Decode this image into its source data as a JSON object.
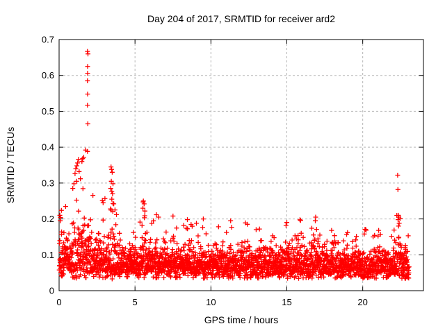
{
  "page": {
    "background": "#ffffff"
  },
  "chart_data": {
    "type": "scatter",
    "title": "Day 204 of 2017, SRMTID for receiver ard2",
    "xlabel": "GPS time / hours",
    "ylabel": "SRMTID / TECUs",
    "xlim": [
      0,
      24
    ],
    "ylim": [
      0,
      0.7
    ],
    "xticks": [
      0,
      5,
      10,
      15,
      20
    ],
    "yticks": [
      0,
      0.1,
      0.2,
      0.3,
      0.4,
      0.5,
      0.6,
      0.7
    ],
    "grid": true,
    "legend": "none",
    "marker": "plus",
    "marker_size": 7,
    "marker_color": "#ff0000",
    "grid_color": "#b5b5b5",
    "axis_color": "#000000",
    "series_name": "SRMTID",
    "generator": {
      "seed": 20417,
      "n_points": 2600,
      "t_min": 0.01,
      "t_max": 23.05,
      "base_median": 0.068,
      "early_trend_amp": 0.22,
      "early_trend_tau": 5.0,
      "sigma0": 0.3,
      "sigma_bump_gain": 0.5,
      "bump_median_gain": 0.18,
      "y_floor": 0.024,
      "y_cap": 0.38,
      "z_clip": [
        -2.1,
        2.6
      ],
      "bumps": [
        [
          0.25,
          0.35,
          0.55
        ],
        [
          1.2,
          0.45,
          1.3
        ],
        [
          2.0,
          0.35,
          1.2
        ],
        [
          2.85,
          0.3,
          0.8
        ],
        [
          3.5,
          0.35,
          1.3
        ],
        [
          4.2,
          0.25,
          0.45
        ],
        [
          5.58,
          0.35,
          0.9
        ],
        [
          6.35,
          0.25,
          0.55
        ],
        [
          6.9,
          0.2,
          0.4
        ],
        [
          7.5,
          0.3,
          0.6
        ],
        [
          8.45,
          0.3,
          0.55
        ],
        [
          9.0,
          0.2,
          0.35
        ],
        [
          9.5,
          0.3,
          0.5
        ],
        [
          10.45,
          0.3,
          0.45
        ],
        [
          11.3,
          0.3,
          0.5
        ],
        [
          12.3,
          0.3,
          0.4
        ],
        [
          13.15,
          0.3,
          0.35
        ],
        [
          14.2,
          0.3,
          0.4
        ],
        [
          14.95,
          0.3,
          0.45
        ],
        [
          15.9,
          0.3,
          0.5
        ],
        [
          16.9,
          0.3,
          0.55
        ],
        [
          17.95,
          0.3,
          0.4
        ],
        [
          19.0,
          0.3,
          0.35
        ],
        [
          20.05,
          0.3,
          0.3
        ],
        [
          21.05,
          0.3,
          0.4
        ],
        [
          22.35,
          0.25,
          0.8
        ],
        [
          22.9,
          0.15,
          0.45
        ]
      ],
      "outliers": [
        [
          1.87,
          0.667
        ],
        [
          1.9,
          0.66
        ],
        [
          1.88,
          0.625
        ],
        [
          1.88,
          0.606
        ],
        [
          1.87,
          0.585
        ],
        [
          1.88,
          0.548
        ],
        [
          1.87,
          0.517
        ],
        [
          1.89,
          0.465
        ],
        [
          1.75,
          0.392
        ],
        [
          1.87,
          0.388
        ],
        [
          1.62,
          0.372
        ],
        [
          1.55,
          0.368
        ],
        [
          1.5,
          0.36
        ],
        [
          1.28,
          0.366
        ],
        [
          1.22,
          0.356
        ],
        [
          1.17,
          0.348
        ],
        [
          1.1,
          0.34
        ],
        [
          1.32,
          0.332
        ],
        [
          1.05,
          0.326
        ],
        [
          1.4,
          0.312
        ],
        [
          1.15,
          0.305
        ],
        [
          0.98,
          0.298
        ],
        [
          0.9,
          0.285
        ],
        [
          3.42,
          0.345
        ],
        [
          3.46,
          0.338
        ],
        [
          3.5,
          0.33
        ],
        [
          3.44,
          0.305
        ],
        [
          3.55,
          0.298
        ],
        [
          3.4,
          0.285
        ],
        [
          3.52,
          0.27
        ],
        [
          3.47,
          0.255
        ],
        [
          3.6,
          0.242
        ],
        [
          3.38,
          0.228
        ],
        [
          22.3,
          0.322
        ],
        [
          22.32,
          0.282
        ],
        [
          22.35,
          0.21
        ],
        [
          22.38,
          0.205
        ],
        [
          22.33,
          0.198
        ],
        [
          22.4,
          0.188
        ],
        [
          22.36,
          0.18
        ],
        [
          0.05,
          0.21
        ],
        [
          0.08,
          0.195
        ],
        [
          0.15,
          0.224
        ],
        [
          2.85,
          0.252
        ],
        [
          2.9,
          0.245
        ],
        [
          5.55,
          0.25
        ],
        [
          5.6,
          0.242
        ],
        [
          5.52,
          0.23
        ],
        [
          5.65,
          0.222
        ],
        [
          6.55,
          0.205
        ],
        [
          7.5,
          0.208
        ],
        [
          8.45,
          0.198
        ],
        [
          9.5,
          0.2
        ],
        [
          10.5,
          0.178
        ],
        [
          11.3,
          0.195
        ],
        [
          12.4,
          0.185
        ],
        [
          13.2,
          0.172
        ],
        [
          14.95,
          0.182
        ],
        [
          15.0,
          0.19
        ],
        [
          16.9,
          0.205
        ],
        [
          16.88,
          0.195
        ],
        [
          17.95,
          0.168
        ],
        [
          19.0,
          0.162
        ],
        [
          20.1,
          0.158
        ],
        [
          21.05,
          0.168
        ]
      ]
    }
  }
}
